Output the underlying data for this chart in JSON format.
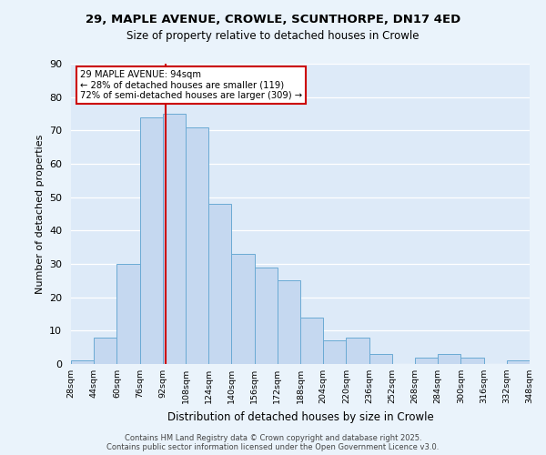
{
  "title1": "29, MAPLE AVENUE, CROWLE, SCUNTHORPE, DN17 4ED",
  "title2": "Size of property relative to detached houses in Crowle",
  "xlabel": "Distribution of detached houses by size in Crowle",
  "ylabel": "Number of detached properties",
  "bin_labels": [
    "28sqm",
    "44sqm",
    "60sqm",
    "76sqm",
    "92sqm",
    "108sqm",
    "124sqm",
    "140sqm",
    "156sqm",
    "172sqm",
    "188sqm",
    "204sqm",
    "220sqm",
    "236sqm",
    "252sqm",
    "268sqm",
    "284sqm",
    "300sqm",
    "316sqm",
    "332sqm",
    "348sqm"
  ],
  "bar_values": [
    1,
    8,
    30,
    74,
    75,
    71,
    48,
    33,
    29,
    25,
    14,
    7,
    8,
    3,
    0,
    2,
    3,
    2,
    0,
    1
  ],
  "bar_color": "#c5d8f0",
  "bar_edge_color": "#6aaad4",
  "vline_x": 4.5,
  "vline_color": "#cc0000",
  "annotation_title": "29 MAPLE AVENUE: 94sqm",
  "annotation_line1": "← 28% of detached houses are smaller (119)",
  "annotation_line2": "72% of semi-detached houses are larger (309) →",
  "annotation_box_color": "#ffffff",
  "annotation_box_edge": "#cc0000",
  "ylim": [
    0,
    90
  ],
  "yticks": [
    0,
    10,
    20,
    30,
    40,
    50,
    60,
    70,
    80,
    90
  ],
  "footer1": "Contains HM Land Registry data © Crown copyright and database right 2025.",
  "footer2": "Contains public sector information licensed under the Open Government Licence v3.0.",
  "bg_color": "#eaf3fb",
  "plot_bg_color": "#ddeaf8"
}
